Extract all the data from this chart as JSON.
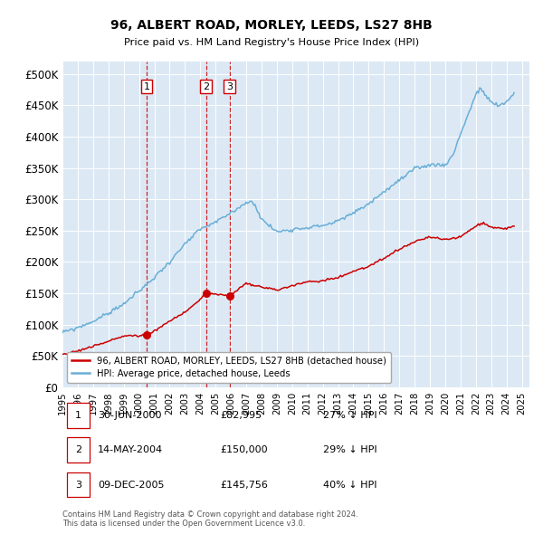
{
  "title": "96, ALBERT ROAD, MORLEY, LEEDS, LS27 8HB",
  "subtitle": "Price paid vs. HM Land Registry's House Price Index (HPI)",
  "ytick_values": [
    0,
    50000,
    100000,
    150000,
    200000,
    250000,
    300000,
    350000,
    400000,
    450000,
    500000
  ],
  "ylim": [
    0,
    520000
  ],
  "xlim_start": 1995.0,
  "xlim_end": 2025.5,
  "bg_color": "#dce9f5",
  "hpi_color": "#6aaed6",
  "price_color": "#cc0000",
  "dash_color": "#cc0000",
  "legend_label_price": "96, ALBERT ROAD, MORLEY, LEEDS, LS27 8HB (detached house)",
  "legend_label_hpi": "HPI: Average price, detached house, Leeds",
  "trans_dates": [
    2000.5,
    2004.37,
    2005.92
  ],
  "trans_prices": [
    82995,
    150000,
    145756
  ],
  "trans_labels": [
    "1",
    "2",
    "3"
  ],
  "table_rows": [
    {
      "num": "1",
      "date": "30-JUN-2000",
      "price": "£82,995",
      "pct": "27% ↓ HPI"
    },
    {
      "num": "2",
      "date": "14-MAY-2004",
      "price": "£150,000",
      "pct": "29% ↓ HPI"
    },
    {
      "num": "3",
      "date": "09-DEC-2005",
      "price": "£145,756",
      "pct": "40% ↓ HPI"
    }
  ],
  "footer": "Contains HM Land Registry data © Crown copyright and database right 2024.\nThis data is licensed under the Open Government Licence v3.0.",
  "hpi_waypoints_x": [
    1995,
    1996,
    1997,
    1998,
    1999,
    2000,
    2001,
    2002,
    2003,
    2004,
    2005,
    2006,
    2007,
    2007.5,
    2008,
    2009,
    2010,
    2011,
    2012,
    2013,
    2014,
    2015,
    2016,
    2017,
    2018,
    2019,
    2020,
    2020.5,
    2021,
    2021.5,
    2022,
    2022.3,
    2023,
    2023.5,
    2024,
    2024.5
  ],
  "hpi_waypoints_y": [
    87000,
    95000,
    105000,
    118000,
    133000,
    153000,
    175000,
    200000,
    228000,
    252000,
    263000,
    278000,
    295000,
    295000,
    268000,
    248000,
    252000,
    255000,
    258000,
    265000,
    278000,
    293000,
    312000,
    330000,
    348000,
    355000,
    355000,
    370000,
    405000,
    435000,
    468000,
    476000,
    455000,
    448000,
    455000,
    470000
  ],
  "price_waypoints_x": [
    1995,
    1996,
    1997,
    1998,
    1999,
    2000,
    2000.5,
    2001,
    2002,
    2003,
    2004,
    2004.37,
    2005,
    2005.5,
    2005.92,
    2006,
    2007,
    2008,
    2009,
    2010,
    2011,
    2012,
    2013,
    2014,
    2015,
    2016,
    2017,
    2018,
    2019,
    2020,
    2021,
    2022,
    2022.5,
    2023,
    2024,
    2024.5
  ],
  "price_waypoints_y": [
    52000,
    58000,
    65000,
    73000,
    82000,
    82000,
    82995,
    90000,
    105000,
    120000,
    140000,
    150000,
    148000,
    147000,
    145756,
    148000,
    165000,
    160000,
    155000,
    162000,
    168000,
    170000,
    175000,
    185000,
    193000,
    205000,
    220000,
    232000,
    240000,
    235000,
    240000,
    257000,
    263000,
    255000,
    253000,
    258000
  ]
}
